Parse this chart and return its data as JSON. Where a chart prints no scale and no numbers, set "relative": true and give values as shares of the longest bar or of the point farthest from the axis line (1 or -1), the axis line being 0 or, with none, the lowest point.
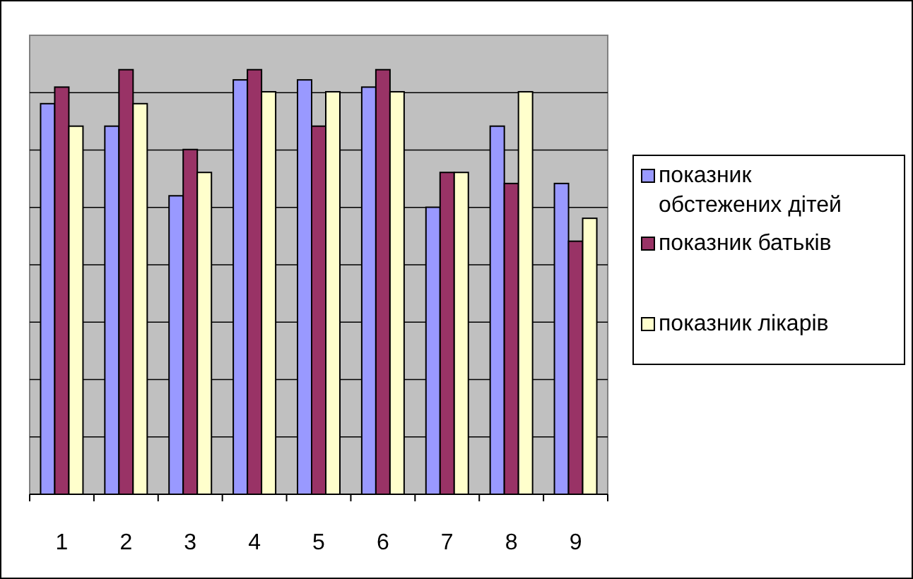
{
  "chart_data": {
    "type": "bar",
    "relative": true,
    "grid": true,
    "legend": "right",
    "categories": [
      "1",
      "2",
      "3",
      "4",
      "5",
      "6",
      "7",
      "8",
      "9"
    ],
    "series": [
      {
        "name": "показник обстежених дітей",
        "color": "#9999ff",
        "values": [
          0.92,
          0.867,
          0.703,
          0.976,
          0.976,
          0.959,
          0.676,
          0.867,
          0.732
        ]
      },
      {
        "name": "показник батьків",
        "color": "#993366",
        "values": [
          0.959,
          1,
          0.812,
          1,
          0.867,
          1,
          0.758,
          0.732,
          0.596
        ]
      },
      {
        "name": "показник лікарів",
        "color": "#ffffcc",
        "values": [
          0.867,
          0.92,
          0.758,
          0.948,
          0.948,
          0.948,
          0.758,
          0.948,
          0.65
        ]
      }
    ]
  }
}
